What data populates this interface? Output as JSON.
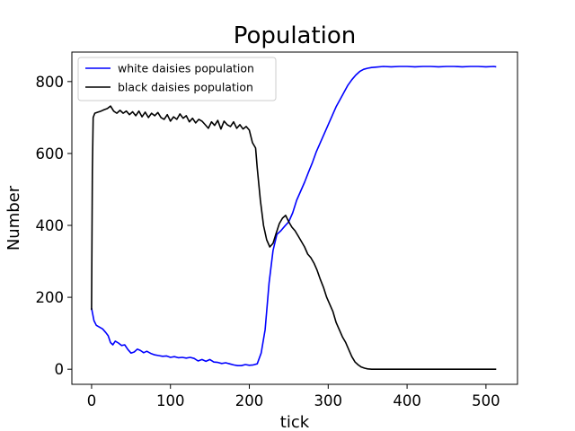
{
  "chart_data": {
    "type": "line",
    "title": "Population",
    "xlabel": "tick",
    "ylabel": "Number",
    "xlim": [
      -25,
      540
    ],
    "ylim": [
      -42,
      882
    ],
    "xticks": [
      0,
      100,
      200,
      300,
      400,
      500
    ],
    "yticks": [
      0,
      200,
      400,
      600,
      800
    ],
    "grid": false,
    "legend_position": "upper-left",
    "series": [
      {
        "name": "white daisies population",
        "color": "#0000ff",
        "points": [
          [
            0,
            170
          ],
          [
            3,
            135
          ],
          [
            6,
            122
          ],
          [
            10,
            117
          ],
          [
            14,
            112
          ],
          [
            18,
            102
          ],
          [
            21,
            93
          ],
          [
            24,
            74
          ],
          [
            27,
            68
          ],
          [
            30,
            78
          ],
          [
            34,
            73
          ],
          [
            38,
            66
          ],
          [
            42,
            68
          ],
          [
            46,
            55
          ],
          [
            50,
            45
          ],
          [
            54,
            48
          ],
          [
            58,
            56
          ],
          [
            62,
            52
          ],
          [
            66,
            46
          ],
          [
            70,
            50
          ],
          [
            75,
            44
          ],
          [
            80,
            40
          ],
          [
            85,
            38
          ],
          [
            90,
            36
          ],
          [
            95,
            37
          ],
          [
            100,
            33
          ],
          [
            105,
            35
          ],
          [
            110,
            32
          ],
          [
            115,
            33
          ],
          [
            120,
            31
          ],
          [
            125,
            33
          ],
          [
            130,
            30
          ],
          [
            135,
            23
          ],
          [
            140,
            27
          ],
          [
            145,
            22
          ],
          [
            150,
            27
          ],
          [
            155,
            20
          ],
          [
            160,
            19
          ],
          [
            165,
            16
          ],
          [
            170,
            18
          ],
          [
            175,
            15
          ],
          [
            180,
            12
          ],
          [
            185,
            10
          ],
          [
            190,
            10
          ],
          [
            195,
            13
          ],
          [
            200,
            11
          ],
          [
            205,
            12
          ],
          [
            210,
            15
          ],
          [
            215,
            45
          ],
          [
            220,
            110
          ],
          [
            225,
            240
          ],
          [
            230,
            330
          ],
          [
            235,
            375
          ],
          [
            240,
            385
          ],
          [
            245,
            398
          ],
          [
            250,
            410
          ],
          [
            255,
            435
          ],
          [
            260,
            470
          ],
          [
            265,
            495
          ],
          [
            270,
            520
          ],
          [
            275,
            548
          ],
          [
            280,
            575
          ],
          [
            285,
            605
          ],
          [
            290,
            630
          ],
          [
            295,
            655
          ],
          [
            300,
            680
          ],
          [
            305,
            705
          ],
          [
            310,
            730
          ],
          [
            315,
            750
          ],
          [
            320,
            770
          ],
          [
            325,
            790
          ],
          [
            330,
            805
          ],
          [
            335,
            818
          ],
          [
            340,
            828
          ],
          [
            345,
            834
          ],
          [
            350,
            837
          ],
          [
            355,
            839
          ],
          [
            360,
            840
          ],
          [
            370,
            842
          ],
          [
            380,
            841
          ],
          [
            390,
            842
          ],
          [
            400,
            842
          ],
          [
            410,
            841
          ],
          [
            420,
            842
          ],
          [
            430,
            842
          ],
          [
            440,
            841
          ],
          [
            450,
            842
          ],
          [
            460,
            842
          ],
          [
            470,
            841
          ],
          [
            480,
            842
          ],
          [
            490,
            842
          ],
          [
            500,
            841
          ],
          [
            510,
            842
          ],
          [
            513,
            841
          ]
        ]
      },
      {
        "name": "black daisies population",
        "color": "#000000",
        "points": [
          [
            0,
            165
          ],
          [
            1,
            550
          ],
          [
            2,
            700
          ],
          [
            4,
            712
          ],
          [
            8,
            715
          ],
          [
            12,
            718
          ],
          [
            16,
            722
          ],
          [
            20,
            725
          ],
          [
            24,
            732
          ],
          [
            28,
            718
          ],
          [
            32,
            712
          ],
          [
            36,
            720
          ],
          [
            40,
            712
          ],
          [
            44,
            718
          ],
          [
            48,
            708
          ],
          [
            52,
            716
          ],
          [
            56,
            705
          ],
          [
            60,
            718
          ],
          [
            64,
            702
          ],
          [
            68,
            715
          ],
          [
            72,
            700
          ],
          [
            76,
            712
          ],
          [
            80,
            705
          ],
          [
            84,
            714
          ],
          [
            88,
            700
          ],
          [
            92,
            695
          ],
          [
            96,
            708
          ],
          [
            100,
            690
          ],
          [
            104,
            702
          ],
          [
            108,
            695
          ],
          [
            112,
            710
          ],
          [
            116,
            698
          ],
          [
            120,
            705
          ],
          [
            124,
            688
          ],
          [
            128,
            698
          ],
          [
            132,
            685
          ],
          [
            136,
            695
          ],
          [
            140,
            690
          ],
          [
            144,
            680
          ],
          [
            148,
            670
          ],
          [
            152,
            688
          ],
          [
            156,
            678
          ],
          [
            160,
            692
          ],
          [
            164,
            668
          ],
          [
            168,
            690
          ],
          [
            172,
            680
          ],
          [
            176,
            675
          ],
          [
            180,
            688
          ],
          [
            184,
            670
          ],
          [
            188,
            680
          ],
          [
            192,
            668
          ],
          [
            196,
            675
          ],
          [
            200,
            665
          ],
          [
            204,
            630
          ],
          [
            208,
            615
          ],
          [
            210,
            560
          ],
          [
            214,
            470
          ],
          [
            218,
            400
          ],
          [
            222,
            360
          ],
          [
            226,
            340
          ],
          [
            230,
            350
          ],
          [
            234,
            378
          ],
          [
            238,
            405
          ],
          [
            242,
            420
          ],
          [
            246,
            428
          ],
          [
            250,
            410
          ],
          [
            254,
            395
          ],
          [
            258,
            385
          ],
          [
            262,
            370
          ],
          [
            266,
            355
          ],
          [
            270,
            340
          ],
          [
            274,
            320
          ],
          [
            278,
            310
          ],
          [
            282,
            295
          ],
          [
            286,
            275
          ],
          [
            290,
            250
          ],
          [
            294,
            228
          ],
          [
            298,
            200
          ],
          [
            302,
            180
          ],
          [
            306,
            160
          ],
          [
            310,
            130
          ],
          [
            314,
            110
          ],
          [
            318,
            90
          ],
          [
            322,
            75
          ],
          [
            326,
            55
          ],
          [
            330,
            35
          ],
          [
            334,
            20
          ],
          [
            338,
            12
          ],
          [
            342,
            6
          ],
          [
            346,
            3
          ],
          [
            350,
            1
          ],
          [
            355,
            0
          ],
          [
            360,
            0
          ],
          [
            380,
            0
          ],
          [
            400,
            0
          ],
          [
            420,
            0
          ],
          [
            440,
            0
          ],
          [
            460,
            0
          ],
          [
            480,
            0
          ],
          [
            500,
            0
          ],
          [
            513,
            0
          ]
        ]
      }
    ]
  }
}
